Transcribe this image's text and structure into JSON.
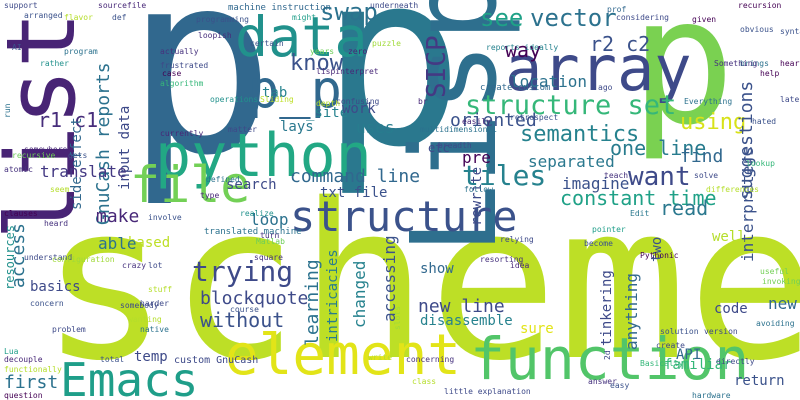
{
  "words": [
    {
      "text": "p",
      "color": "#31688e"
    },
    {
      "text": "p",
      "color": "#2a788e"
    },
    {
      "text": "p",
      "color": "#7ad151"
    },
    {
      "text": "scheme",
      "color": "#bddf26"
    },
    {
      "text": "list",
      "color": "#482475"
    },
    {
      "text": "Lisp",
      "color": "#2e6f8e"
    },
    {
      "text": "python",
      "color": "#22a884"
    },
    {
      "text": "array",
      "color": "#3e4a89"
    },
    {
      "text": "data",
      "color": "#21918c"
    },
    {
      "text": "p_p",
      "color": "#31688e"
    },
    {
      "text": "structure",
      "color": "#3b528b"
    },
    {
      "text": "file",
      "color": "#73d056"
    },
    {
      "text": "function",
      "color": "#52c569"
    },
    {
      "text": "element",
      "color": "#e2e418"
    },
    {
      "text": "Emacs",
      "color": "#1f9e89"
    },
    {
      "text": "tiles",
      "color": "#26828e"
    },
    {
      "text": "structure set",
      "color": "#35b779"
    },
    {
      "text": "SICP",
      "color": "#443983"
    },
    {
      "text": "swap",
      "color": "#2c728e"
    },
    {
      "text": "know",
      "color": "#3b528b"
    },
    {
      "text": "see",
      "color": "#1fa187"
    },
    {
      "text": "vector",
      "color": "#2c728e"
    },
    {
      "text": "way",
      "color": "#440154"
    },
    {
      "text": "semantics",
      "color": "#26828e"
    },
    {
      "text": "trying",
      "color": "#3e4a89"
    },
    {
      "text": "using",
      "color": "#d8e219"
    },
    {
      "text": "want",
      "color": "#3e4a89"
    },
    {
      "text": "one line",
      "color": "#287c8e"
    },
    {
      "text": "r2 c2",
      "color": "#3b528b"
    },
    {
      "text": "r1 c1",
      "color": "#472d7b"
    },
    {
      "text": "GnuCash reports",
      "color": "#2c728e"
    },
    {
      "text": "command line",
      "color": "#31688e"
    },
    {
      "text": "blockquote",
      "color": "#3e4a89"
    },
    {
      "text": "without",
      "color": "#3b528b"
    },
    {
      "text": "new line",
      "color": "#3e4a89"
    },
    {
      "text": "constant time",
      "color": "#1fa187"
    },
    {
      "text": "read",
      "color": "#2a788e"
    },
    {
      "text": "suggestions",
      "color": "#3b528b"
    }
  ],
  "small_words": [
    "support",
    "flavor",
    "sourcefile",
    "def",
    "machine instruction",
    "might",
    "underneath",
    "prof",
    "recursion",
    "loopish",
    "actually",
    "program",
    "lispinterpret",
    "years",
    "zero",
    "puzzle",
    "frustrated",
    "case",
    "algorithm",
    "reports ideally",
    "location",
    "create custom",
    "ago",
    "side effect",
    "input data",
    "tab",
    "_site",
    "oriented",
    "pre",
    "etc",
    "lays",
    "uses",
    "separated",
    "rewrite",
    "imagine",
    "find",
    "translate",
    "make",
    "search",
    "txt file",
    "loop",
    "interpreters",
    "work",
    "based",
    "able",
    "access",
    "resources",
    "basics",
    "accessing",
    "changed",
    "learning",
    "intricacies",
    "show",
    "two",
    "well",
    "familiar",
    "anything",
    "tinkering",
    "code",
    "disassemble",
    "temp",
    "sure",
    "first",
    "return",
    "API",
    "new",
    "custom GnuCash",
    "translated machine",
    "Matlab",
    "Lua",
    "question",
    "decouple",
    "functionally",
    "concern",
    "problem",
    "total",
    "write",
    "concerning",
    "easy",
    "hardware",
    "directly",
    "avoiding",
    "useful",
    "invoking",
    "version",
    "solution",
    "Pythonic",
    "Edit",
    "pointer",
    "become",
    "relying",
    "resorting",
    "idea",
    "Everything",
    "given",
    "obvious",
    "brings",
    "heart",
    "later",
    "help",
    "hated",
    "Something",
    "teach",
    "follow",
    "solve",
    "differences",
    "lookup",
    "breadth",
    "retrospect",
    "easily",
    "br",
    "confusing",
    "depth",
    "Sliding",
    "matter",
    "currently",
    "operations",
    "certain",
    "gets",
    "atomic",
    "clauses",
    "heard",
    "understand",
    "configuration",
    "crazy",
    "wanting",
    "harder",
    "native",
    "somebody",
    "course",
    "square",
    "turn",
    "stuff",
    "lot",
    "involve",
    "type",
    "defined",
    "realize",
    "somewhere",
    "recursive",
    "arranged",
    "AI",
    "rather",
    "run",
    "class",
    "little explanation",
    "Basically",
    "answer",
    "create",
    "2d",
    "slots",
    "multidimensional",
    "considering",
    "programming",
    "seem",
    "syntax",
    "set",
    "Sample"
  ]
}
